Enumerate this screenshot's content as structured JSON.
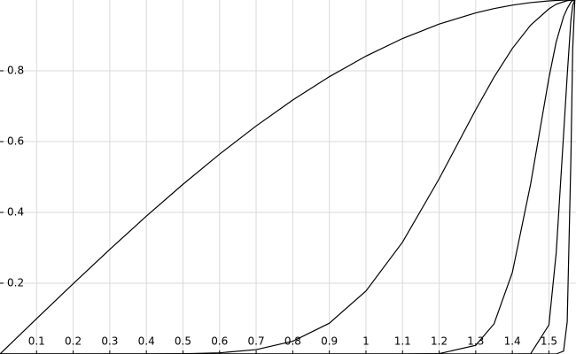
{
  "chart_data": {
    "type": "line",
    "x": [
      0,
      0.1,
      0.2,
      0.3,
      0.4,
      0.5,
      0.6,
      0.7,
      0.8,
      0.9,
      1.0,
      1.1,
      1.2,
      1.3,
      1.35,
      1.4,
      1.45,
      1.5,
      1.52,
      1.54,
      1.55,
      1.56,
      1.565,
      1.5708
    ],
    "series": [
      {
        "color": "#000000",
        "values": [
          0,
          0.0998,
          0.1987,
          0.2955,
          0.3894,
          0.4794,
          0.5646,
          0.6442,
          0.7174,
          0.7833,
          0.8415,
          0.8912,
          0.932,
          0.9636,
          0.9757,
          0.9854,
          0.9927,
          0.9975,
          0.99875,
          0.99952,
          0.99976,
          0.99994,
          0.999985,
          1
        ]
      },
      {
        "color": "#000000",
        "values": [
          0,
          0,
          0,
          0,
          0.0001,
          0.0006,
          0.0033,
          0.0123,
          0.036,
          0.087,
          0.178,
          0.316,
          0.495,
          0.69,
          0.782,
          0.863,
          0.929,
          0.975,
          0.988,
          0.995,
          0.998,
          0.9994,
          0.9998,
          1
        ]
      },
      {
        "color": "#000000",
        "values": [
          0,
          0,
          0,
          0,
          0,
          0,
          0,
          0,
          0,
          0,
          0,
          0,
          0.0009,
          0.0245,
          0.085,
          0.23,
          0.48,
          0.78,
          0.882,
          0.953,
          0.976,
          0.994,
          0.9985,
          1
        ]
      },
      {
        "color": "#000000",
        "values": [
          0,
          0,
          0,
          0,
          0,
          0,
          0,
          0,
          0,
          0,
          0,
          0,
          0,
          0,
          0,
          0,
          0.0007,
          0.082,
          0.287,
          0.619,
          0.787,
          0.942,
          0.985,
          1
        ]
      },
      {
        "color": "#000000",
        "values": [
          0,
          0,
          0,
          0,
          0,
          0,
          0,
          0,
          0,
          0,
          0,
          0,
          0,
          0,
          0,
          0,
          0,
          0,
          0,
          0.008,
          0.091,
          0.549,
          0.861,
          1
        ]
      }
    ],
    "xlim": [
      0,
      1.574
    ],
    "ylim": [
      0,
      1
    ],
    "xticks": [
      0.1,
      0.2,
      0.3,
      0.4,
      0.5,
      0.6,
      0.7,
      0.8,
      0.9,
      1,
      1.1,
      1.2,
      1.3,
      1.4,
      1.5
    ],
    "yticks": [
      0.2,
      0.4,
      0.6,
      0.8
    ],
    "grid": true
  }
}
